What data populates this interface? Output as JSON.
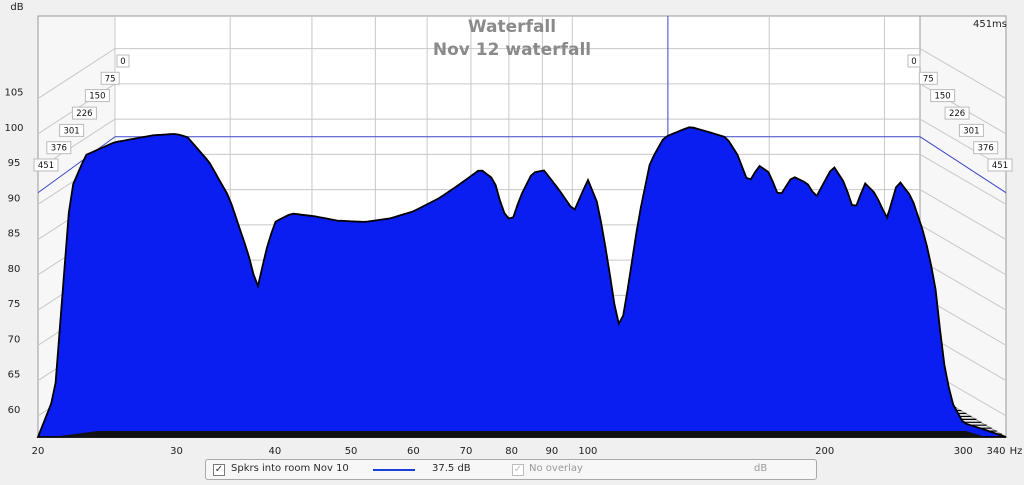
{
  "chart_data": {
    "type": "area",
    "title": "Waterfall",
    "subtitle": "Nov 12 waterfall",
    "ylabel": "dB",
    "xlabel": "Hz",
    "x_scale": "log",
    "xlim": [
      20,
      340
    ],
    "ylim": [
      57,
      108
    ],
    "x_ticks": [
      20,
      30,
      40,
      50,
      60,
      70,
      80,
      90,
      100,
      200,
      300,
      340
    ],
    "y_ticks": [
      60,
      65,
      70,
      75,
      80,
      85,
      90,
      95,
      100,
      105
    ],
    "time_unit": "ms",
    "time_max_label": "451ms",
    "time_ticks": [
      0,
      75,
      150,
      226,
      301,
      376,
      451
    ],
    "cursor_hz": 140,
    "cursor_db": 92.5,
    "front_slice_ms": 0,
    "front_slice_db": [
      [
        20,
        57
      ],
      [
        21,
        63
      ],
      [
        22,
        92
      ],
      [
        23,
        97
      ],
      [
        25,
        98.8
      ],
      [
        28,
        99.8
      ],
      [
        30,
        100
      ],
      [
        31,
        99.5
      ],
      [
        33,
        96
      ],
      [
        35,
        91
      ],
      [
        37,
        83
      ],
      [
        38,
        78
      ],
      [
        39,
        83.5
      ],
      [
        40,
        87.5
      ],
      [
        42,
        88.7
      ],
      [
        45,
        88.3
      ],
      [
        48,
        87.7
      ],
      [
        52,
        87.5
      ],
      [
        56,
        88
      ],
      [
        60,
        89
      ],
      [
        65,
        91
      ],
      [
        70,
        93.5
      ],
      [
        73,
        95
      ],
      [
        76,
        93.5
      ],
      [
        78,
        89
      ],
      [
        80,
        87.5
      ],
      [
        82,
        91
      ],
      [
        85,
        94.5
      ],
      [
        88,
        94.8
      ],
      [
        92,
        92
      ],
      [
        96,
        89
      ],
      [
        100,
        93.5
      ],
      [
        103,
        90
      ],
      [
        106,
        82
      ],
      [
        108,
        76
      ],
      [
        110,
        72
      ],
      [
        112,
        77
      ],
      [
        116,
        88
      ],
      [
        120,
        96
      ],
      [
        125,
        99.5
      ],
      [
        130,
        100.3
      ],
      [
        135,
        101
      ],
      [
        140,
        100.5
      ],
      [
        150,
        99.5
      ],
      [
        155,
        97
      ],
      [
        160,
        93
      ],
      [
        165,
        95.5
      ],
      [
        170,
        94.5
      ],
      [
        175,
        91
      ],
      [
        182,
        94
      ],
      [
        190,
        93
      ],
      [
        195,
        91
      ],
      [
        205,
        95.5
      ],
      [
        212,
        93
      ],
      [
        218,
        89
      ],
      [
        225,
        93
      ],
      [
        232,
        91.5
      ],
      [
        240,
        88
      ],
      [
        248,
        93.5
      ],
      [
        258,
        91
      ],
      [
        268,
        85.5
      ],
      [
        276,
        79
      ],
      [
        283,
        68
      ],
      [
        290,
        62
      ],
      [
        300,
        59
      ],
      [
        320,
        58
      ],
      [
        340,
        57
      ]
    ],
    "slices_shown": 18,
    "series": [
      {
        "name": "Spkrs into room Nov 10",
        "value_label": "37.5 dB",
        "color": "#1a3fd6"
      }
    ]
  },
  "legend": {
    "series_name": "Spkrs into room Nov 10",
    "series_value": "37.5 dB",
    "overlay_label": "No overlay",
    "overlay_unit": "dB"
  },
  "colors": {
    "fill": "#0a1ef2",
    "outline": "#000000",
    "cursor": "#3b46c8",
    "grid": "#c8c8c8",
    "panel": "#ffffff"
  }
}
